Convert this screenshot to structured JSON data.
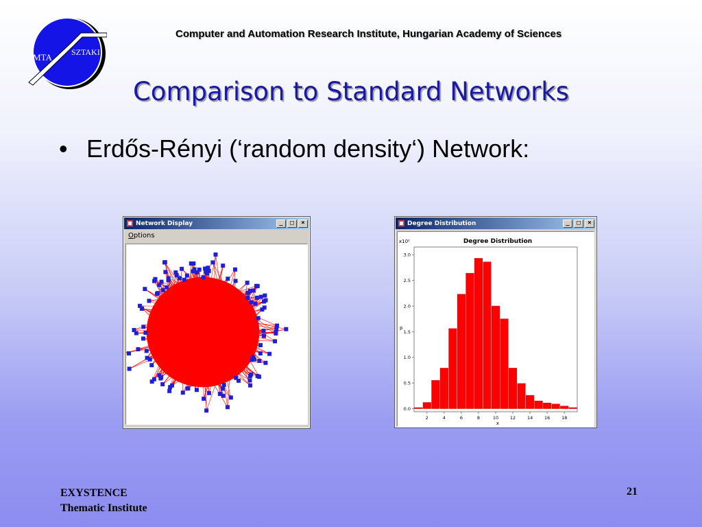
{
  "header": {
    "institute": "Computer and Automation Research Institute, Hungarian Academy of Sciences",
    "logo_text_left": "MTA",
    "logo_text_right": "SZTAKI",
    "logo_color": "#1414e6"
  },
  "slide": {
    "title": "Comparison to Standard Networks",
    "bullet_marker": "•",
    "bullet": "Erdős-Rényi (‘random density‘) Network:"
  },
  "network_window": {
    "title": "Network Display",
    "menu": "Options",
    "node_color": "#2020d0",
    "edge_color": "#ff0000"
  },
  "degree_window": {
    "title": "Degree Distribution",
    "bar_color": "#ff0000"
  },
  "window_buttons": {
    "minimize": "_",
    "maximize": "□",
    "close": "×"
  },
  "chart_data": {
    "type": "bar",
    "title": "Degree Distribution",
    "xlabel": "x",
    "ylabel": "p",
    "y_multiplier": "x10²",
    "x": [
      1,
      2,
      3,
      4,
      5,
      6,
      7,
      8,
      9,
      10,
      11,
      12,
      13,
      14,
      15,
      16,
      17,
      18,
      19
    ],
    "values": [
      0.02,
      0.12,
      0.55,
      0.79,
      1.56,
      2.23,
      2.64,
      2.93,
      2.86,
      2.0,
      1.75,
      0.79,
      0.49,
      0.26,
      0.15,
      0.11,
      0.09,
      0.05,
      0.02
    ],
    "xticks": [
      "2",
      "4",
      "6",
      "8",
      "10",
      "12",
      "14",
      "16",
      "18"
    ],
    "yticks": [
      "0.0",
      "0.5",
      "1.0",
      "1.5",
      "2.0",
      "2.5",
      "3.0"
    ],
    "xlim": [
      0.5,
      19.5
    ],
    "ylim": [
      -0.06,
      3.15
    ],
    "grid": false
  },
  "footer": {
    "org_line1": "EXYSTENCE",
    "org_line2": "Thematic Institute",
    "page": "21"
  }
}
